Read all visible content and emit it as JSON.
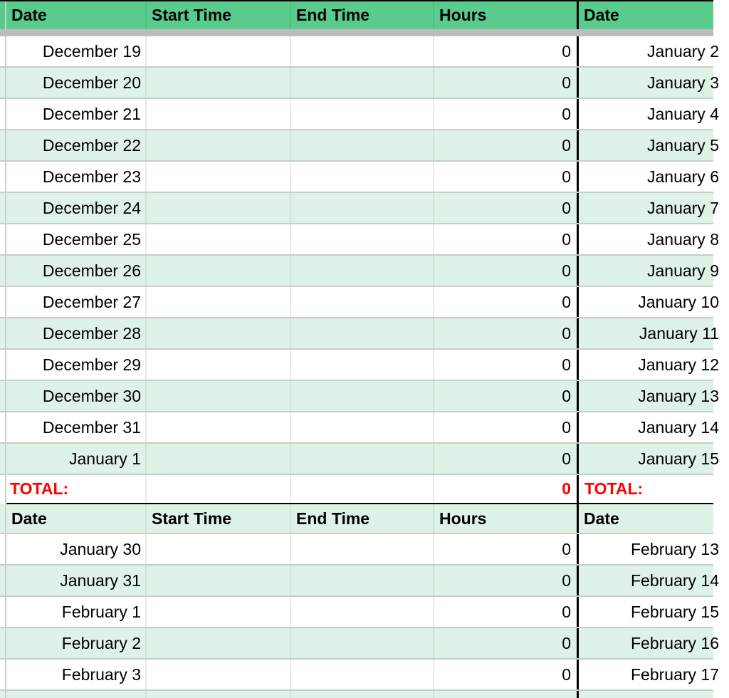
{
  "colors": {
    "header_green": "#59cb8d",
    "band_green": "#dff2e8",
    "frozen_bar_gray": "#bcbcbc",
    "total_red": "#ff0000",
    "divider_black": "#000000"
  },
  "header1": {
    "date": "Date",
    "start": "Start Time",
    "end": "End Time",
    "hours": "Hours",
    "date2": "Date"
  },
  "header2": {
    "date": "Date",
    "start": "Start Time",
    "end": "End Time",
    "hours": "Hours",
    "date2": "Date"
  },
  "section1": {
    "rows": [
      {
        "date": "December 19",
        "start": "",
        "end": "",
        "hours": "0",
        "date2": "January 2"
      },
      {
        "date": "December 20",
        "start": "",
        "end": "",
        "hours": "0",
        "date2": "January 3"
      },
      {
        "date": "December 21",
        "start": "",
        "end": "",
        "hours": "0",
        "date2": "January 4"
      },
      {
        "date": "December 22",
        "start": "",
        "end": "",
        "hours": "0",
        "date2": "January 5"
      },
      {
        "date": "December 23",
        "start": "",
        "end": "",
        "hours": "0",
        "date2": "January 6"
      },
      {
        "date": "December 24",
        "start": "",
        "end": "",
        "hours": "0",
        "date2": "January 7"
      },
      {
        "date": "December 25",
        "start": "",
        "end": "",
        "hours": "0",
        "date2": "January 8"
      },
      {
        "date": "December 26",
        "start": "",
        "end": "",
        "hours": "0",
        "date2": "January 9"
      },
      {
        "date": "December 27",
        "start": "",
        "end": "",
        "hours": "0",
        "date2": "January 10"
      },
      {
        "date": "December 28",
        "start": "",
        "end": "",
        "hours": "0",
        "date2": "January 11"
      },
      {
        "date": "December 29",
        "start": "",
        "end": "",
        "hours": "0",
        "date2": "January 12"
      },
      {
        "date": "December 30",
        "start": "",
        "end": "",
        "hours": "0",
        "date2": "January 13"
      },
      {
        "date": "December 31",
        "start": "",
        "end": "",
        "hours": "0",
        "date2": "January 14"
      },
      {
        "date": "January 1",
        "start": "",
        "end": "",
        "hours": "0",
        "date2": "January 15"
      }
    ],
    "total": {
      "label": "TOTAL:",
      "hours": "0",
      "label2": "TOTAL:"
    }
  },
  "section2": {
    "rows": [
      {
        "date": "January 30",
        "start": "",
        "end": "",
        "hours": "0",
        "date2": "February 13"
      },
      {
        "date": "January 31",
        "start": "",
        "end": "",
        "hours": "0",
        "date2": "February 14"
      },
      {
        "date": "February 1",
        "start": "",
        "end": "",
        "hours": "0",
        "date2": "February 15"
      },
      {
        "date": "February 2",
        "start": "",
        "end": "",
        "hours": "0",
        "date2": "February 16"
      },
      {
        "date": "February 3",
        "start": "",
        "end": "",
        "hours": "0",
        "date2": "February 17"
      }
    ]
  }
}
